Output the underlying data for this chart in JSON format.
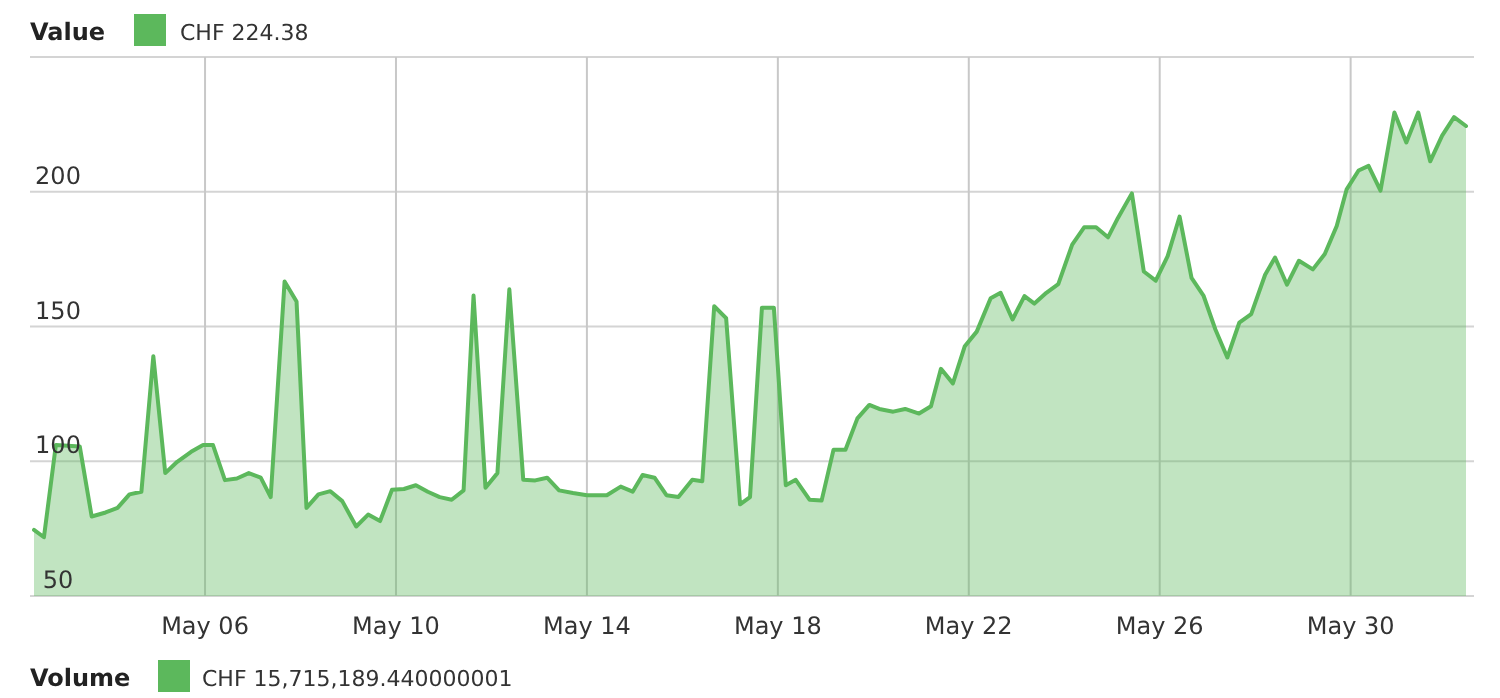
{
  "chart_data": {
    "type": "area",
    "legend": "top left",
    "grid": true,
    "xlim": [
      "--05-02T10:00",
      "--06-01T10:00"
    ],
    "ylim": [
      50,
      250
    ],
    "xticks": [
      {
        "value": "--05-06",
        "label": "May 06"
      },
      {
        "value": "--05-10",
        "label": "May 10"
      },
      {
        "value": "--05-14",
        "label": "May 14"
      },
      {
        "value": "--05-18",
        "label": "May 18"
      },
      {
        "value": "--05-22",
        "label": "May 22"
      },
      {
        "value": "--05-26",
        "label": "May 26"
      },
      {
        "value": "--05-30",
        "label": "May 30"
      }
    ],
    "yticks": [
      50,
      100,
      150,
      200,
      {
        "value": 250,
        "label": null
      }
    ],
    "annotations": [
      "CHF 224.38",
      "Volume",
      "CHF 15,715,189.440000001"
    ],
    "series": [
      {
        "name": "Value",
        "color": "#5cb85c",
        "x": [
          "--05-02T10:00",
          "--05-02T15:00",
          "--05-02T21:00",
          "--05-03T09:00",
          "--05-03T15:00",
          "--05-03T22:00",
          "--05-04T04:00",
          "--05-04T10:00",
          "--05-04T16:00",
          "--05-04T22:00",
          "--05-05T04:00",
          "--05-05T10:00",
          "--05-05T17:00",
          "--05-05T23:00",
          "--05-06T04:00",
          "--05-06T10:00",
          "--05-06T16:00",
          "--05-06T22:00",
          "--05-07T04:00",
          "--05-07T09:00",
          "--05-07T16:00",
          "--05-07T22:00",
          "--05-08T03:00",
          "--05-08T09:00",
          "--05-08T15:00",
          "--05-08T21:00",
          "--05-09T04:00",
          "--05-09T10:00",
          "--05-09T16:00",
          "--05-09T22:00",
          "--05-10T04:00",
          "--05-10T10:00",
          "--05-10T16:00",
          "--05-10T22:00",
          "--05-11T04:00",
          "--05-11T10:00",
          "--05-11T15:00",
          "--05-11T21:00",
          "--05-12T03:00",
          "--05-12T09:00",
          "--05-12T16:00",
          "--05-12T22:00",
          "--05-13T04:00",
          "--05-13T10:00",
          "--05-13T17:00",
          "--05-14T00:00",
          "--05-14T10:00",
          "--05-14T17:00",
          "--05-14T23:00",
          "--05-15T04:00",
          "--05-15T10:00",
          "--05-15T16:00",
          "--05-15T22:00",
          "--05-16T05:00",
          "--05-16T10:00",
          "--05-16T16:00",
          "--05-16T22:00",
          "--05-17T05:00",
          "--05-17T10:00",
          "--05-17T16:00",
          "--05-17T22:00",
          "--05-18T04:00",
          "--05-18T09:00",
          "--05-18T16:00",
          "--05-18T22:00",
          "--05-19T04:00",
          "--05-19T10:00",
          "--05-19T16:00",
          "--05-19T22:00",
          "--05-20T03:00",
          "--05-20T10:00",
          "--05-20T16:00",
          "--05-20T23:00",
          "--05-21T05:00",
          "--05-21T10:00",
          "--05-21T16:00",
          "--05-21T22:00",
          "--05-22T04:00",
          "--05-22T11:00",
          "--05-22T16:00",
          "--05-22T22:00",
          "--05-23T04:00",
          "--05-23T09:00",
          "--05-23T15:00",
          "--05-23T21:00",
          "--05-24T04:00",
          "--05-24T10:00",
          "--05-24T16:00",
          "--05-24T22:00",
          "--05-25T03:00",
          "--05-25T10:00",
          "--05-25T16:00",
          "--05-25T22:00",
          "--05-26T04:00",
          "--05-26T10:00",
          "--05-26T16:00",
          "--05-26T22:00",
          "--05-27T04:00",
          "--05-27T10:00",
          "--05-27T16:00",
          "--05-27T22:00",
          "--05-28T05:00",
          "--05-28T10:00",
          "--05-28T16:00",
          "--05-28T22:00",
          "--05-29T05:00",
          "--05-29T11:00",
          "--05-29T17:00",
          "--05-29T22:00",
          "--05-30T04:00",
          "--05-30T09:00",
          "--05-30T15:00",
          "--05-30T22:00",
          "--05-31T04:00",
          "--05-31T10:00",
          "--05-31T16:00",
          "--05-31T22:00",
          "--06-01T04:00",
          "--06-01T10:00"
        ],
        "values": [
          74.5,
          71.8,
          106,
          105.5,
          79.5,
          81,
          82.7,
          87.7,
          88.7,
          139,
          95.6,
          99.8,
          103.5,
          106,
          106,
          93,
          93.6,
          95.6,
          93.9,
          86.7,
          166.7,
          159.3,
          82.7,
          87.7,
          88.9,
          85.2,
          75.8,
          80.2,
          77.8,
          89.4,
          89.7,
          91.1,
          88.7,
          86.7,
          85.7,
          89.2,
          161.5,
          90.2,
          95.6,
          163.8,
          93.1,
          92.9,
          93.9,
          89.2,
          88.2,
          87.4,
          87.4,
          90.6,
          88.7,
          94.9,
          93.9,
          87.4,
          86.7,
          93.1,
          92.6,
          157.5,
          153.1,
          84,
          86.7,
          157,
          157,
          91.1,
          93.1,
          85.7,
          85.4,
          104.3,
          104.3,
          115.9,
          120.9,
          119.4,
          118.4,
          119.4,
          117.7,
          120.4,
          134.3,
          128.9,
          142.7,
          148.1,
          160.5,
          162.5,
          152.6,
          161.3,
          158.5,
          162.5,
          165.7,
          180.4,
          186.8,
          186.8,
          183.1,
          190.3,
          199.4,
          170.4,
          167,
          176.1,
          190.8,
          168,
          161.5,
          148.9,
          138.5,
          151.4,
          154.6,
          169.2,
          175.6,
          165.5,
          174.4,
          171.2,
          176.9,
          187.3,
          200.9,
          207.9,
          209.6,
          200.4,
          229.4,
          218.3,
          229.4,
          211.3,
          220.8,
          227.7,
          224.4
        ]
      }
    ]
  }
}
